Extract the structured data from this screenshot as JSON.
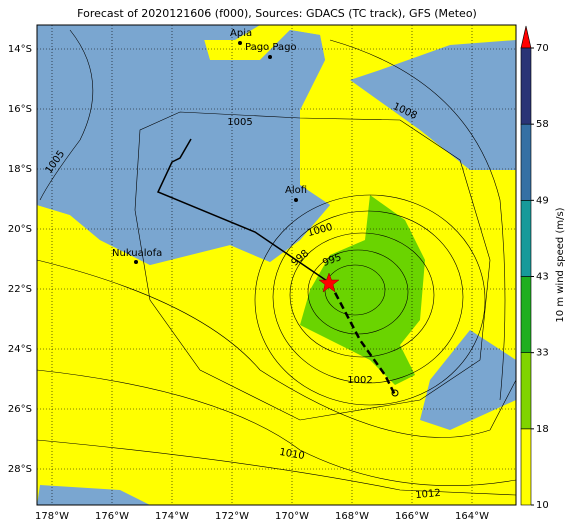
{
  "title": "Forecast of 2020121606 (f000), Sources: GDACS (TC track), GFS (Meteo)",
  "lon_ticks": [
    "178°W",
    "176°W",
    "174°W",
    "172°W",
    "170°W",
    "168°W",
    "166°W",
    "164°W"
  ],
  "lat_ticks": [
    "14°S",
    "16°S",
    "18°S",
    "20°S",
    "22°S",
    "24°S",
    "26°S",
    "28°S"
  ],
  "colorbar": {
    "label": "10 m wind speed (m/s)",
    "ticks": [
      10,
      18,
      33,
      43,
      49,
      58,
      70
    ],
    "colors": [
      "#ffff00",
      "#80d400",
      "#1faf1f",
      "#179a9a",
      "#3570a4",
      "#2a3476"
    ],
    "extend_color": "#ff0000"
  },
  "places": [
    "Apia",
    "Pago Pago",
    "Alofi",
    "Nukualofa"
  ],
  "isobars": [
    "1005",
    "1008",
    "1005",
    "1000",
    "998",
    "995",
    "1002",
    "1010",
    "1012"
  ]
}
